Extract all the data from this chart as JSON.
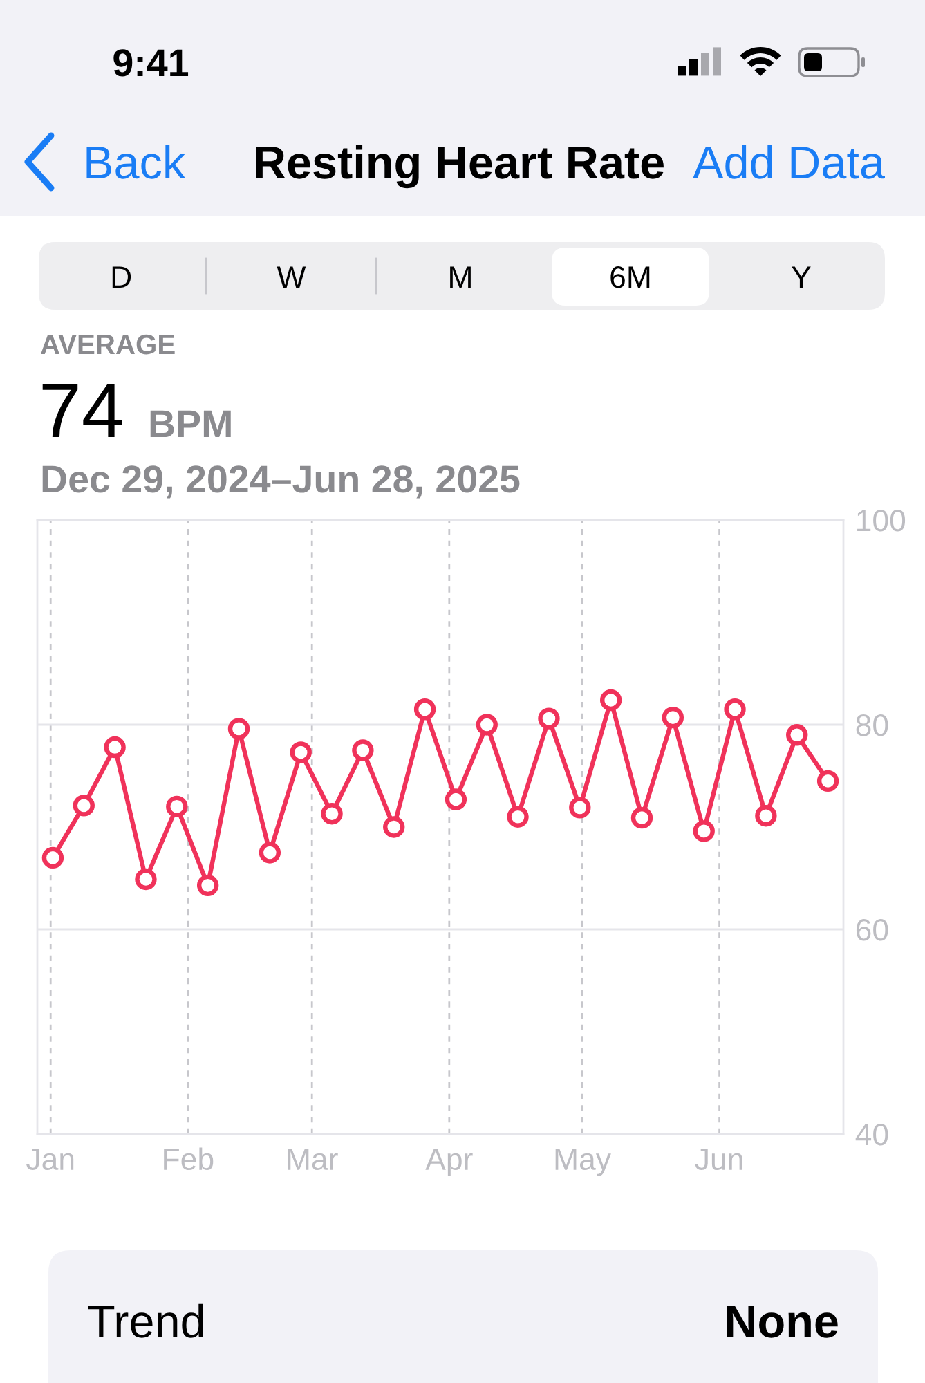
{
  "chart_data": {
    "type": "line",
    "title": "Resting Heart Rate",
    "annotations": [
      "9:41",
      "Back",
      "Add Data",
      "D",
      "W",
      "M",
      "6M",
      "Y",
      "AVERAGE",
      "74",
      "BPM",
      "Dec 29, 2024–Jun 28, 2025",
      "Trend",
      "None"
    ],
    "x": [
      "2025-01-01T12:00",
      "2025-01-08T12:00",
      "2025-01-15T12:00",
      "2025-01-22T12:00",
      "2025-01-29T12:00",
      "2025-02-05T12:00",
      "2025-02-12T12:00",
      "2025-02-19T12:00",
      "2025-02-26T12:00",
      "2025-03-05T12:00",
      "2025-03-12T12:00",
      "2025-03-19T12:00",
      "2025-03-26T12:00",
      "2025-04-02T12:00",
      "2025-04-09T12:00",
      "2025-04-16T12:00",
      "2025-04-23T12:00",
      "2025-04-30T12:00",
      "2025-05-07T12:00",
      "2025-05-14T12:00",
      "2025-05-21T12:00",
      "2025-05-28T12:00",
      "2025-06-04T12:00",
      "2025-06-11T12:00",
      "2025-06-18T12:00",
      "2025-06-25T12:00"
    ],
    "series": [
      {
        "color": "#f0325a",
        "values": [
          67.0,
          72.1,
          77.8,
          64.9,
          72.0,
          64.3,
          79.6,
          67.5,
          77.3,
          71.3,
          77.5,
          70.0,
          81.5,
          72.7,
          80.0,
          71.0,
          80.6,
          71.9,
          82.4,
          70.9,
          80.7,
          69.6,
          81.5,
          71.1,
          79.0,
          74.5
        ]
      }
    ],
    "xlim": [
      "2024-12-29",
      "2025-06-29"
    ],
    "xticks": [
      {
        "value": "2025-01-01",
        "label": "Jan"
      },
      {
        "value": "2025-02-01",
        "label": "Feb"
      },
      {
        "value": "2025-03-01",
        "label": "Mar"
      },
      {
        "value": "2025-04-01",
        "label": "Apr"
      },
      {
        "value": "2025-05-01",
        "label": "May"
      },
      {
        "value": "2025-06-01",
        "label": "Jun"
      }
    ],
    "ylim": [
      40,
      100
    ],
    "yticks": [
      40,
      60,
      80,
      100
    ],
    "grid": true,
    "marker": "circle",
    "line_style": "solid"
  }
}
